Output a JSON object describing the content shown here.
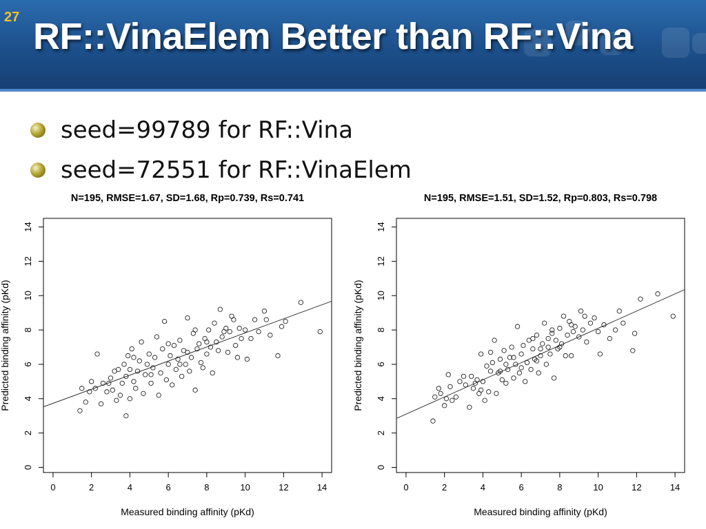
{
  "slide": {
    "number": "27",
    "title": "RF::VinaElem Better than RF::Vina"
  },
  "bullets": [
    {
      "text": "seed=99789 for RF::Vina"
    },
    {
      "text": "seed=72551 for RF::VinaElem"
    }
  ],
  "colors": {
    "banner": "#1c4f8a",
    "title": "#ffffff",
    "slide_number": "#f2c12e",
    "points": "#000000"
  },
  "chart_data": [
    {
      "type": "scatter",
      "title": "N=195, RMSE=1.67, SD=1.68, Rp=0.739, Rs=0.741",
      "xlabel": "Measured binding affinity (pKd)",
      "ylabel": "Predicted binding affinity (pKd)",
      "xlim": [
        -0.5,
        14.5
      ],
      "ylim": [
        -0.3,
        14.5
      ],
      "xticks": [
        0,
        2,
        4,
        6,
        8,
        10,
        12,
        14
      ],
      "yticks": [
        0,
        2,
        4,
        6,
        8,
        10,
        12,
        14
      ],
      "fit_line": {
        "intercept": 3.73,
        "slope": 0.41
      },
      "grid": false,
      "points": [
        [
          1.4,
          3.3
        ],
        [
          1.5,
          4.6
        ],
        [
          1.7,
          3.8
        ],
        [
          1.9,
          4.4
        ],
        [
          2.0,
          5.0
        ],
        [
          2.2,
          4.6
        ],
        [
          2.3,
          6.6
        ],
        [
          2.5,
          3.7
        ],
        [
          2.6,
          4.9
        ],
        [
          2.8,
          4.4
        ],
        [
          3.0,
          5.2
        ],
        [
          3.1,
          4.5
        ],
        [
          3.3,
          3.9
        ],
        [
          3.4,
          5.7
        ],
        [
          3.5,
          4.2
        ],
        [
          3.6,
          4.9
        ],
        [
          3.7,
          6.0
        ],
        [
          3.8,
          3.0
        ],
        [
          3.8,
          5.3
        ],
        [
          3.9,
          6.5
        ],
        [
          4.0,
          4.0
        ],
        [
          4.0,
          5.7
        ],
        [
          4.1,
          6.9
        ],
        [
          4.2,
          5.0
        ],
        [
          4.3,
          4.6
        ],
        [
          4.4,
          5.6
        ],
        [
          4.5,
          6.2
        ],
        [
          4.6,
          7.3
        ],
        [
          4.7,
          4.3
        ],
        [
          4.8,
          5.4
        ],
        [
          4.9,
          6.0
        ],
        [
          5.0,
          6.6
        ],
        [
          5.1,
          4.9
        ],
        [
          5.2,
          5.8
        ],
        [
          5.3,
          6.4
        ],
        [
          5.4,
          7.6
        ],
        [
          5.5,
          4.2
        ],
        [
          5.6,
          5.5
        ],
        [
          5.7,
          6.9
        ],
        [
          5.8,
          8.5
        ],
        [
          5.9,
          5.1
        ],
        [
          6.0,
          6.0
        ],
        [
          6.1,
          6.5
        ],
        [
          6.2,
          4.8
        ],
        [
          6.3,
          7.1
        ],
        [
          6.4,
          5.7
        ],
        [
          6.5,
          6.3
        ],
        [
          6.6,
          7.4
        ],
        [
          6.7,
          5.3
        ],
        [
          6.8,
          6.8
        ],
        [
          6.9,
          6.0
        ],
        [
          7.0,
          8.7
        ],
        [
          7.1,
          5.6
        ],
        [
          7.2,
          6.4
        ],
        [
          7.3,
          7.8
        ],
        [
          7.4,
          4.5
        ],
        [
          7.5,
          6.9
        ],
        [
          7.6,
          7.2
        ],
        [
          7.7,
          6.1
        ],
        [
          7.8,
          5.8
        ],
        [
          7.9,
          7.5
        ],
        [
          8.0,
          6.6
        ],
        [
          8.1,
          8.0
        ],
        [
          8.2,
          7.0
        ],
        [
          8.3,
          5.5
        ],
        [
          8.4,
          8.4
        ],
        [
          8.5,
          7.3
        ],
        [
          8.6,
          6.8
        ],
        [
          8.7,
          9.2
        ],
        [
          8.8,
          7.6
        ],
        [
          9.0,
          8.1
        ],
        [
          9.1,
          6.7
        ],
        [
          9.2,
          7.9
        ],
        [
          9.3,
          8.8
        ],
        [
          9.5,
          7.1
        ],
        [
          9.6,
          6.4
        ],
        [
          9.7,
          8.1
        ],
        [
          9.8,
          7.5
        ],
        [
          10.0,
          8.0
        ],
        [
          10.1,
          6.3
        ],
        [
          10.3,
          7.5
        ],
        [
          10.5,
          8.6
        ],
        [
          10.7,
          7.9
        ],
        [
          11.0,
          9.1
        ],
        [
          11.1,
          8.6
        ],
        [
          11.3,
          7.7
        ],
        [
          11.7,
          6.5
        ],
        [
          11.9,
          8.2
        ],
        [
          12.1,
          8.5
        ],
        [
          12.9,
          9.6
        ],
        [
          13.9,
          7.9
        ],
        [
          2.9,
          4.9
        ],
        [
          3.2,
          5.6
        ],
        [
          4.2,
          6.4
        ],
        [
          5.1,
          5.4
        ],
        [
          6.0,
          7.2
        ],
        [
          6.6,
          6.0
        ],
        [
          7.0,
          6.7
        ],
        [
          7.4,
          8.0
        ],
        [
          8.0,
          7.3
        ],
        [
          8.9,
          7.9
        ],
        [
          9.4,
          8.6
        ]
      ]
    },
    {
      "type": "scatter",
      "title": "N=195, RMSE=1.51, SD=1.52, Rp=0.803, Rs=0.798",
      "xlabel": "Measured binding affinity (pKd)",
      "ylabel": "Predicted binding affinity (pKd)",
      "xlim": [
        -0.5,
        14.5
      ],
      "ylim": [
        -0.3,
        14.5
      ],
      "xticks": [
        0,
        2,
        4,
        6,
        8,
        10,
        12,
        14
      ],
      "yticks": [
        0,
        2,
        4,
        6,
        8,
        10,
        12,
        14
      ],
      "fit_line": {
        "intercept": 3.1,
        "slope": 0.5
      },
      "grid": false,
      "points": [
        [
          1.4,
          2.7
        ],
        [
          1.5,
          4.1
        ],
        [
          1.7,
          4.6
        ],
        [
          1.8,
          4.3
        ],
        [
          2.0,
          3.6
        ],
        [
          2.1,
          4.0
        ],
        [
          2.2,
          5.4
        ],
        [
          2.4,
          3.9
        ],
        [
          2.6,
          4.1
        ],
        [
          2.8,
          5.0
        ],
        [
          3.1,
          4.8
        ],
        [
          3.3,
          3.5
        ],
        [
          3.4,
          5.3
        ],
        [
          3.5,
          4.6
        ],
        [
          3.7,
          5.1
        ],
        [
          3.8,
          4.3
        ],
        [
          3.9,
          6.6
        ],
        [
          4.0,
          5.0
        ],
        [
          4.1,
          3.9
        ],
        [
          4.2,
          5.9
        ],
        [
          4.3,
          4.4
        ],
        [
          4.4,
          5.6
        ],
        [
          4.5,
          6.1
        ],
        [
          4.6,
          7.4
        ],
        [
          4.7,
          4.3
        ],
        [
          4.8,
          5.5
        ],
        [
          4.9,
          6.3
        ],
        [
          5.0,
          5.1
        ],
        [
          5.1,
          6.8
        ],
        [
          5.2,
          4.9
        ],
        [
          5.3,
          5.7
        ],
        [
          5.4,
          6.4
        ],
        [
          5.5,
          7.0
        ],
        [
          5.6,
          5.2
        ],
        [
          5.7,
          6.0
        ],
        [
          5.8,
          8.2
        ],
        [
          5.9,
          5.5
        ],
        [
          6.0,
          6.6
        ],
        [
          6.1,
          7.1
        ],
        [
          6.2,
          5.0
        ],
        [
          6.3,
          6.1
        ],
        [
          6.4,
          7.4
        ],
        [
          6.5,
          5.7
        ],
        [
          6.6,
          6.9
        ],
        [
          6.7,
          6.3
        ],
        [
          6.8,
          7.7
        ],
        [
          6.9,
          5.5
        ],
        [
          7.0,
          6.5
        ],
        [
          7.1,
          7.2
        ],
        [
          7.2,
          8.4
        ],
        [
          7.3,
          6.0
        ],
        [
          7.4,
          7.0
        ],
        [
          7.5,
          6.6
        ],
        [
          7.6,
          7.8
        ],
        [
          7.7,
          5.2
        ],
        [
          7.8,
          7.4
        ],
        [
          7.9,
          6.9
        ],
        [
          8.0,
          8.1
        ],
        [
          8.1,
          7.2
        ],
        [
          8.2,
          8.8
        ],
        [
          8.3,
          6.5
        ],
        [
          8.4,
          7.7
        ],
        [
          8.5,
          8.5
        ],
        [
          8.6,
          6.5
        ],
        [
          8.7,
          7.9
        ],
        [
          8.8,
          8.2
        ],
        [
          9.0,
          7.6
        ],
        [
          9.1,
          9.1
        ],
        [
          9.2,
          8.0
        ],
        [
          9.4,
          7.3
        ],
        [
          9.6,
          8.4
        ],
        [
          9.8,
          8.7
        ],
        [
          10.0,
          7.9
        ],
        [
          10.1,
          6.6
        ],
        [
          10.3,
          8.3
        ],
        [
          10.6,
          7.5
        ],
        [
          10.9,
          8.0
        ],
        [
          11.1,
          9.1
        ],
        [
          11.3,
          8.4
        ],
        [
          11.8,
          6.8
        ],
        [
          11.9,
          7.8
        ],
        [
          12.2,
          9.8
        ],
        [
          13.1,
          10.1
        ],
        [
          13.9,
          8.8
        ],
        [
          3.0,
          5.3
        ],
        [
          3.6,
          4.9
        ],
        [
          4.4,
          6.7
        ],
        [
          5.2,
          6.0
        ],
        [
          6.0,
          5.8
        ],
        [
          6.6,
          7.5
        ],
        [
          7.0,
          6.9
        ],
        [
          7.6,
          8.0
        ],
        [
          8.0,
          7.0
        ],
        [
          8.6,
          8.3
        ],
        [
          9.3,
          8.8
        ],
        [
          2.3,
          4.7
        ],
        [
          3.9,
          4.5
        ],
        [
          4.9,
          5.6
        ],
        [
          5.6,
          6.4
        ],
        [
          6.8,
          6.2
        ],
        [
          7.4,
          7.5
        ]
      ]
    }
  ]
}
